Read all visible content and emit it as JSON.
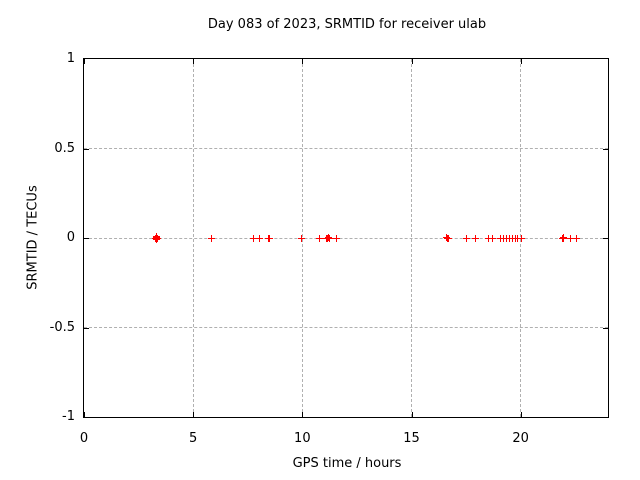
{
  "chart_data": {
    "type": "scatter",
    "title": "Day 083 of 2023, SRMTID for receiver ulab",
    "xlabel": "GPS time / hours",
    "ylabel": "SRMTID / TECUs",
    "xlim": [
      0,
      24
    ],
    "ylim": [
      -1,
      1
    ],
    "grid": true,
    "legend": false,
    "marker": "plus",
    "marker_color": "#ff0000",
    "grid_color": "#b0b0b0",
    "frame_color": "#000000",
    "xticks": [
      {
        "value": 0,
        "label": "0"
      },
      {
        "value": 5,
        "label": "5"
      },
      {
        "value": 10,
        "label": "10"
      },
      {
        "value": 15,
        "label": "15"
      },
      {
        "value": 20,
        "label": "20"
      }
    ],
    "yticks": [
      {
        "value": 1,
        "label": "1"
      },
      {
        "value": 0.5,
        "label": "0.5"
      },
      {
        "value": 0,
        "label": "0"
      },
      {
        "value": -0.5,
        "label": "-0.5"
      },
      {
        "value": -1,
        "label": "-1"
      }
    ],
    "series": [
      {
        "name": "SRMTID",
        "points": [
          [
            3.28,
            -0.005
          ],
          [
            3.3,
            0.01
          ],
          [
            3.31,
            0.005
          ],
          [
            3.34,
            -0.01
          ],
          [
            3.37,
            0
          ],
          [
            5.82,
            0
          ],
          [
            7.75,
            0
          ],
          [
            8.06,
            0
          ],
          [
            8.44,
            0
          ],
          [
            8.5,
            -0.005
          ],
          [
            9.98,
            0
          ],
          [
            10.8,
            0
          ],
          [
            11.12,
            0
          ],
          [
            11.16,
            -0.005
          ],
          [
            11.2,
            0.005
          ],
          [
            11.24,
            0
          ],
          [
            11.56,
            0
          ],
          [
            16.62,
            0.005
          ],
          [
            16.66,
            -0.005
          ],
          [
            16.68,
            0
          ],
          [
            17.5,
            0
          ],
          [
            17.92,
            0
          ],
          [
            18.52,
            0
          ],
          [
            18.71,
            0
          ],
          [
            19.08,
            0
          ],
          [
            19.23,
            0
          ],
          [
            19.37,
            0
          ],
          [
            19.51,
            0
          ],
          [
            19.63,
            0
          ],
          [
            19.75,
            0
          ],
          [
            19.87,
            0
          ],
          [
            20.04,
            0
          ],
          [
            21.9,
            0
          ],
          [
            21.94,
            -0.005
          ],
          [
            21.98,
            0.005
          ],
          [
            22.26,
            0
          ],
          [
            22.58,
            0
          ]
        ]
      }
    ]
  }
}
